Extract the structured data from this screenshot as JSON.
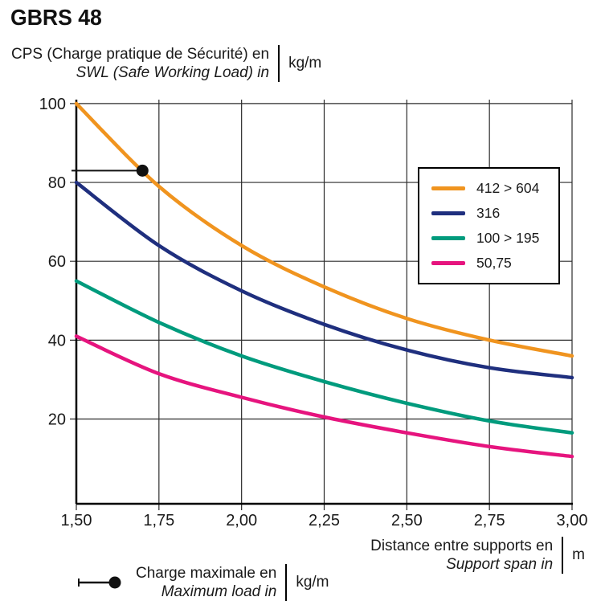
{
  "title": "GBRS 48",
  "y_axis": {
    "label_fr": "CPS (Charge pratique de Sécurité) en",
    "label_en": "SWL (Safe Working Load) in",
    "unit": "kg/m"
  },
  "x_axis": {
    "label_fr": "Distance entre supports en",
    "label_en": "Support span in",
    "unit": "m"
  },
  "max_load_legend": {
    "label_fr": "Charge maximale en",
    "label_en": "Maximum load in",
    "unit": "kg/m"
  },
  "chart_data": {
    "type": "line",
    "x": [
      1.5,
      1.75,
      2.0,
      2.25,
      2.5,
      2.75,
      3.0
    ],
    "xtick_labels": [
      "1,50",
      "1,75",
      "2,00",
      "2,25",
      "2,50",
      "2,75",
      "3,00"
    ],
    "yticks": [
      20,
      40,
      60,
      80,
      100
    ],
    "xlim": [
      1.5,
      3.0
    ],
    "ylim": [
      -1.5,
      101
    ],
    "grid": true,
    "legend_position": "upper right",
    "series": [
      {
        "name": "412 > 604",
        "color": "#F0941F",
        "values": [
          100,
          79,
          64,
          53.5,
          45.5,
          40,
          36
        ]
      },
      {
        "name": "316",
        "color": "#1F2F7E",
        "values": [
          80,
          64,
          52.5,
          44,
          37.5,
          33,
          30.5
        ]
      },
      {
        "name": "100 > 195",
        "color": "#009B7D",
        "values": [
          55,
          44.5,
          36,
          29.5,
          24,
          19.5,
          16.5
        ]
      },
      {
        "name": "50,75",
        "color": "#E6147E",
        "values": [
          41,
          31.5,
          25.5,
          20.5,
          16.5,
          13,
          10.5
        ]
      }
    ],
    "marker_point": {
      "x": 1.7,
      "y": 83
    }
  }
}
